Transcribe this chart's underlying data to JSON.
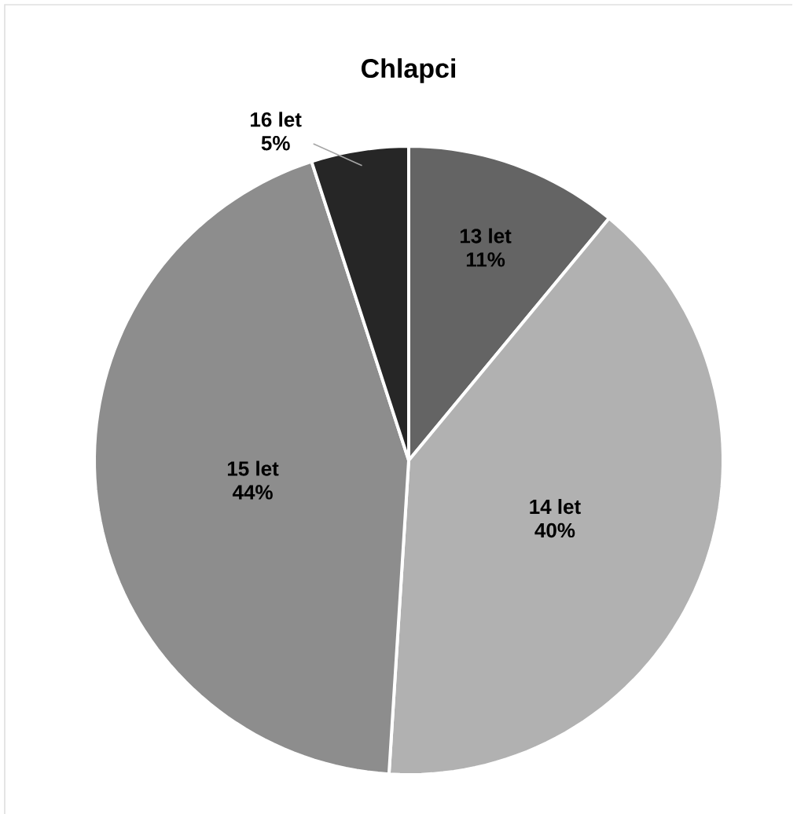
{
  "chart_data": {
    "type": "pie",
    "title": "Chlapci",
    "categories": [
      "13 let",
      "14 let",
      "15 let",
      "16 let"
    ],
    "values": [
      11,
      40,
      44,
      5
    ],
    "value_labels": [
      "11%",
      "40%",
      "44%",
      "5%"
    ],
    "colors": [
      "#646464",
      "#b1b1b1",
      "#8d8d8d",
      "#262626"
    ]
  }
}
